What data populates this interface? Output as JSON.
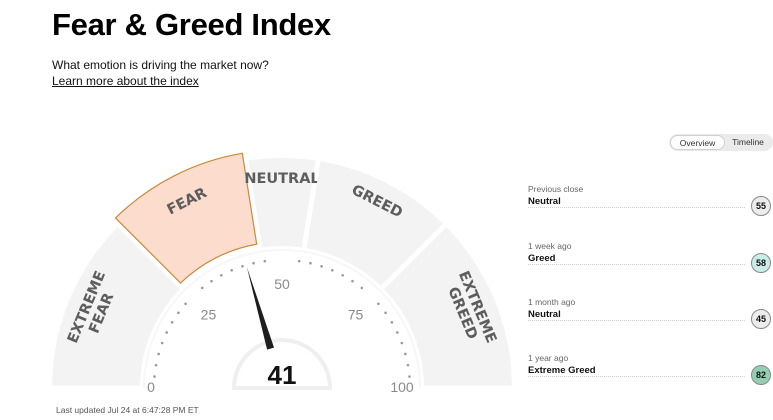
{
  "header": {
    "title": "Fear & Greed Index",
    "subtitle": "What emotion is driving the market now?",
    "learn_more": "Learn more about the index"
  },
  "gauge": {
    "value": 41,
    "active_segment": "FEAR",
    "segments": [
      {
        "label_lines": [
          "EXTREME",
          "FEAR"
        ],
        "range": [
          0,
          25
        ]
      },
      {
        "label_lines": [
          "FEAR"
        ],
        "range": [
          25,
          45
        ]
      },
      {
        "label_lines": [
          "NEUTRAL"
        ],
        "range": [
          45,
          55
        ]
      },
      {
        "label_lines": [
          "GREED"
        ],
        "range": [
          55,
          75
        ]
      },
      {
        "label_lines": [
          "EXTREME",
          "GREED"
        ],
        "range": [
          75,
          100
        ]
      }
    ],
    "scale_labels": [
      "0",
      "25",
      "50",
      "75",
      "100"
    ],
    "colors": {
      "segment_bg": "#f3f3f3",
      "active_fill": "#fcdccd",
      "active_stroke": "#c98a3c",
      "label_color": "#5d5d5d",
      "needle": "#1e1e1e"
    }
  },
  "view_toggle": {
    "options": [
      "Overview",
      "Timeline"
    ],
    "selected": "Overview"
  },
  "history": [
    {
      "when": "Previous close",
      "label": "Neutral",
      "value": "55",
      "color": "#ececec"
    },
    {
      "when": "1 week ago",
      "label": "Greed",
      "value": "58",
      "color": "#c9ede8"
    },
    {
      "when": "1 month ago",
      "label": "Neutral",
      "value": "45",
      "color": "#ececec"
    },
    {
      "when": "1 year ago",
      "label": "Extreme Greed",
      "value": "82",
      "color": "#92cfb1"
    }
  ],
  "last_updated": "Last updated Jul 24 at 6:47:28 PM ET"
}
